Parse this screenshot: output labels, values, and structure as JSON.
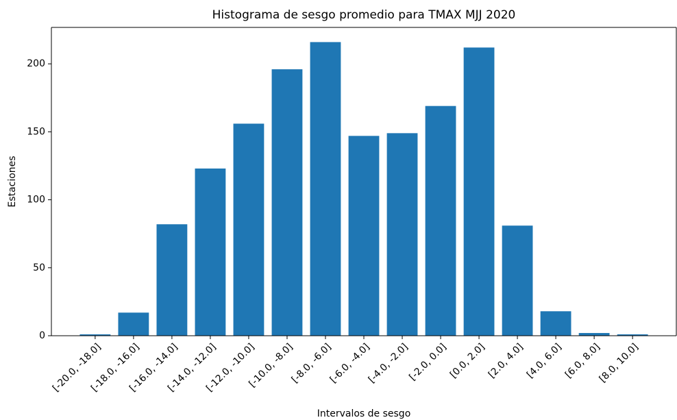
{
  "chart_data": {
    "type": "bar",
    "title": "Histograma de sesgo promedio para TMAX MJJ 2020",
    "x_label": "Intervalos de sesgo",
    "y_label": "Estaciones",
    "categories": [
      "[-20.0, -18.0]",
      "[-18.0, -16.0]",
      "[-16.0, -14.0]",
      "[-14.0, -12.0]",
      "[-12.0, -10.0]",
      "[-10.0, -8.0]",
      "[-8.0, -6.0]",
      "[-6.0, -4.0]",
      "[-4.0, -2.0]",
      "[-2.0, 0.0]",
      "[0.0, 2.0]",
      "[2.0, 4.0]",
      "[4.0, 6.0]",
      "[6.0, 8.0]",
      "[8.0, 10.0]"
    ],
    "values": [
      1,
      17,
      82,
      123,
      156,
      196,
      216,
      147,
      149,
      169,
      212,
      81,
      18,
      2,
      1
    ],
    "color": "#1f77b4",
    "ylim": [
      0,
      226.8
    ],
    "yticks": [
      0,
      50,
      100,
      150,
      200
    ],
    "grid": false
  }
}
